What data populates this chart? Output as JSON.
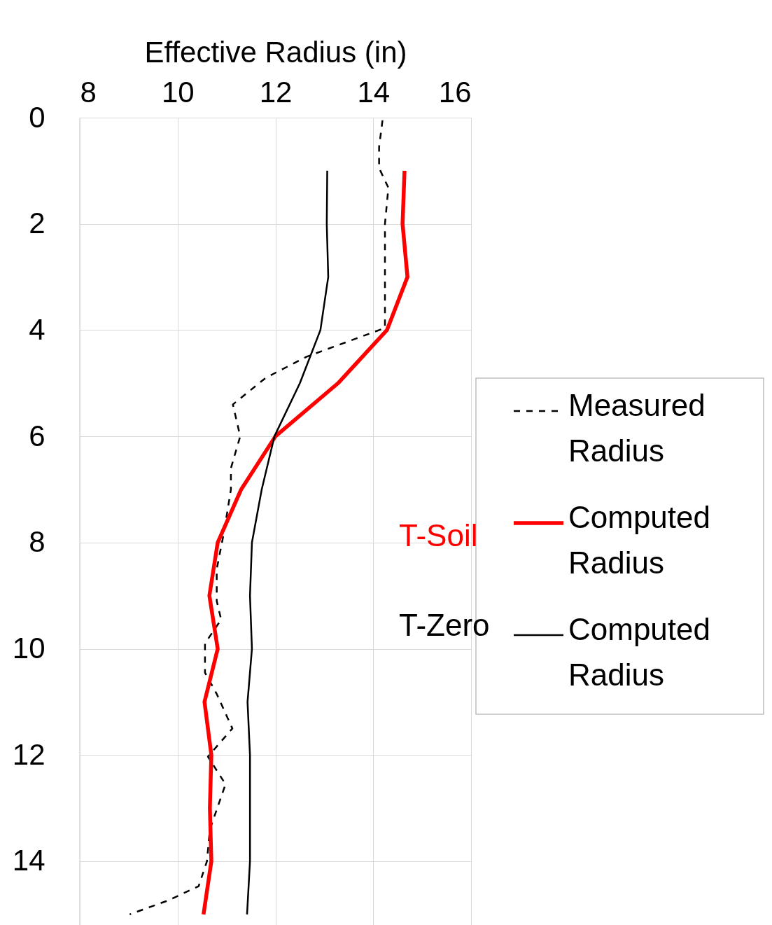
{
  "chart_data": {
    "type": "line",
    "xlabel": "Effective Radius (in)",
    "xlim": [
      8,
      16
    ],
    "xticks": [
      8,
      10,
      12,
      14,
      16
    ],
    "ylim": [
      15.2,
      0
    ],
    "yticks": [
      0,
      2,
      4,
      6,
      8,
      10,
      12,
      14
    ],
    "grid": true,
    "legend": "right",
    "marker": "none",
    "series": [
      {
        "name": "Measured Radius",
        "color": "#000000",
        "line_style": "dashed",
        "x": [
          14.19,
          14.12,
          14.12,
          14.31,
          14.24,
          14.24,
          13.38,
          12.64,
          11.8,
          11.13,
          11.28,
          11.09,
          11.09,
          10.95,
          10.8,
          10.8,
          10.89,
          10.56,
          10.56,
          10.8,
          11.12,
          10.62,
          10.98,
          10.66,
          10.6,
          10.43,
          9.8,
          9.02
        ],
        "values": [
          0.05,
          0.55,
          0.95,
          1.32,
          2,
          3.96,
          4.25,
          4.5,
          4.9,
          5.4,
          6.0,
          6.6,
          7.0,
          7.8,
          8.5,
          9.1,
          9.45,
          9.9,
          10.45,
          10.85,
          11.5,
          12.03,
          12.55,
          13.4,
          14.0,
          14.47,
          14.74,
          15.0
        ]
      },
      {
        "name": "Computed Radius",
        "color": "#ff0000",
        "line_style": "solid",
        "x": [
          14.64,
          14.6,
          14.7,
          14.28,
          13.28,
          12.0,
          11.3,
          10.82,
          10.65,
          10.82,
          10.55,
          10.69,
          10.66,
          10.69,
          10.53
        ],
        "values": [
          1,
          2,
          3,
          4,
          5,
          6,
          7,
          8,
          9,
          10,
          11,
          12,
          13,
          14,
          15
        ]
      },
      {
        "name": "Computed Radius",
        "color": "#000000",
        "line_style": "solid",
        "x": [
          13.06,
          13.05,
          13.08,
          12.92,
          12.5,
          11.98,
          11.72,
          11.52,
          11.48,
          11.52,
          11.43,
          11.48,
          11.48,
          11.48,
          11.42
        ],
        "values": [
          1,
          2,
          3,
          4,
          5,
          6,
          7,
          8,
          9,
          10,
          11,
          12,
          13,
          14,
          15
        ]
      }
    ],
    "annotations": [
      "T-Soil",
      "T-Zero"
    ]
  }
}
